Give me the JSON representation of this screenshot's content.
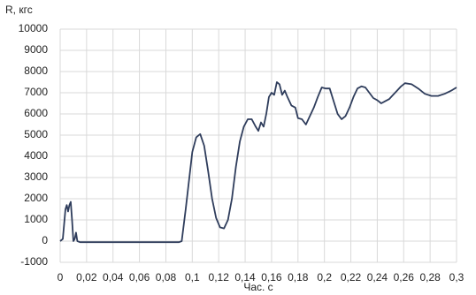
{
  "chart_data": {
    "type": "line",
    "ylabel": "R, кгс",
    "xlabel": "Час. с",
    "x": [
      0,
      0.002,
      0.004,
      0.005,
      0.006,
      0.007,
      0.008,
      0.009,
      0.01,
      0.011,
      0.012,
      0.013,
      0.015,
      0.02,
      0.04,
      0.06,
      0.08,
      0.09,
      0.092,
      0.095,
      0.1,
      0.103,
      0.106,
      0.109,
      0.112,
      0.115,
      0.118,
      0.121,
      0.124,
      0.127,
      0.13,
      0.133,
      0.136,
      0.139,
      0.142,
      0.145,
      0.148,
      0.15,
      0.152,
      0.154,
      0.156,
      0.158,
      0.16,
      0.162,
      0.164,
      0.166,
      0.168,
      0.17,
      0.172,
      0.175,
      0.178,
      0.18,
      0.183,
      0.186,
      0.189,
      0.192,
      0.195,
      0.198,
      0.201,
      0.204,
      0.207,
      0.21,
      0.213,
      0.216,
      0.219,
      0.222,
      0.225,
      0.228,
      0.231,
      0.234,
      0.237,
      0.24,
      0.243,
      0.246,
      0.249,
      0.252,
      0.255,
      0.258,
      0.261,
      0.266,
      0.271,
      0.276,
      0.281,
      0.286,
      0.291,
      0.296,
      0.3
    ],
    "series": [
      {
        "color": "#2f3d5c",
        "values": [
          0,
          100,
          1500,
          1700,
          1400,
          1700,
          1850,
          1000,
          0,
          100,
          400,
          0,
          -50,
          -50,
          -50,
          -50,
          -50,
          -50,
          0,
          1500,
          4200,
          4900,
          5050,
          4500,
          3300,
          2000,
          1100,
          650,
          600,
          1000,
          2000,
          3500,
          4700,
          5400,
          5750,
          5750,
          5400,
          5200,
          5600,
          5400,
          6000,
          6800,
          7000,
          6900,
          7500,
          7400,
          6900,
          7100,
          6800,
          6400,
          6300,
          5800,
          5750,
          5500,
          5900,
          6300,
          6800,
          7250,
          7200,
          7200,
          6600,
          6000,
          5750,
          5900,
          6300,
          6800,
          7200,
          7300,
          7250,
          7000,
          6750,
          6650,
          6500,
          6600,
          6700,
          6900,
          7100,
          7300,
          7450,
          7400,
          7200,
          6950,
          6850,
          6850,
          6950,
          7100,
          7250
        ]
      }
    ],
    "xlim": [
      0,
      0.3
    ],
    "ylim": [
      -1000,
      10000
    ],
    "xticks": [
      0,
      {
        "value": 0.02,
        "label": "0,02"
      },
      {
        "value": 0.04,
        "label": "0,04"
      },
      {
        "value": 0.06,
        "label": "0,06"
      },
      {
        "value": 0.08,
        "label": "0,08"
      },
      {
        "value": 0.1,
        "label": "0,1"
      },
      {
        "value": 0.12,
        "label": "0,12"
      },
      {
        "value": 0.14,
        "label": "0,14"
      },
      {
        "value": 0.16,
        "label": "0,16"
      },
      {
        "value": 0.18,
        "label": "0,18"
      },
      {
        "value": 0.2,
        "label": "0,2"
      },
      {
        "value": 0.22,
        "label": "0,22"
      },
      {
        "value": 0.24,
        "label": "0,24"
      },
      {
        "value": 0.26,
        "label": "0,26"
      },
      {
        "value": 0.28,
        "label": "0,28"
      },
      {
        "value": 0.3,
        "label": "0,3"
      }
    ],
    "yticks": [
      -1000,
      0,
      1000,
      2000,
      3000,
      4000,
      5000,
      6000,
      7000,
      8000,
      9000,
      10000
    ],
    "grid": true
  }
}
